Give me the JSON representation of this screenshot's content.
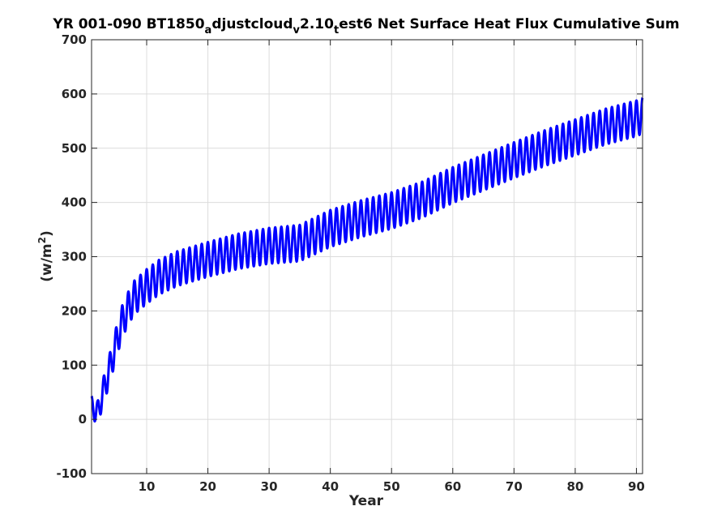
{
  "chart_data": {
    "type": "line",
    "title_parts": {
      "p1": "YR 001-090 BT1850",
      "s1": "a",
      "p2": "djustcloud",
      "s2": "v",
      "p3": "2.10",
      "s3": "t",
      "p4": "est6 Net Surface Heat Flux  Cumulative Sum"
    },
    "xlabel": "Year",
    "ylabel_parts": {
      "base": "(w/m",
      "sup": "2",
      "close": ")"
    },
    "xlim": [
      1,
      91
    ],
    "ylim": [
      -100,
      700
    ],
    "xticks": [
      10,
      20,
      30,
      40,
      50,
      60,
      70,
      80,
      90
    ],
    "yticks": [
      -100,
      0,
      100,
      200,
      300,
      400,
      500,
      600,
      700
    ],
    "grid": true,
    "series": [
      {
        "color": "#0000ff",
        "cycles_per_unit_x": 1,
        "trend_x": [
          1,
          1.5,
          2,
          3,
          4,
          5,
          6,
          7,
          8,
          10,
          12,
          15,
          20,
          25,
          30,
          35,
          40,
          45,
          50,
          55,
          60,
          65,
          70,
          75,
          80,
          85,
          90,
          91
        ],
        "trend_y": [
          28,
          15,
          12,
          55,
          95,
          140,
          180,
          205,
          225,
          245,
          262,
          278,
          295,
          310,
          320,
          325,
          352,
          370,
          385,
          405,
          432,
          455,
          478,
          500,
          520,
          540,
          555,
          560
        ],
        "half_amplitude_x": [
          1,
          2,
          4,
          6,
          10,
          20,
          40,
          60,
          80,
          91
        ],
        "half_amplitude_y": [
          15,
          22,
          28,
          30,
          32,
          32,
          34,
          33,
          33,
          33
        ]
      }
    ]
  }
}
